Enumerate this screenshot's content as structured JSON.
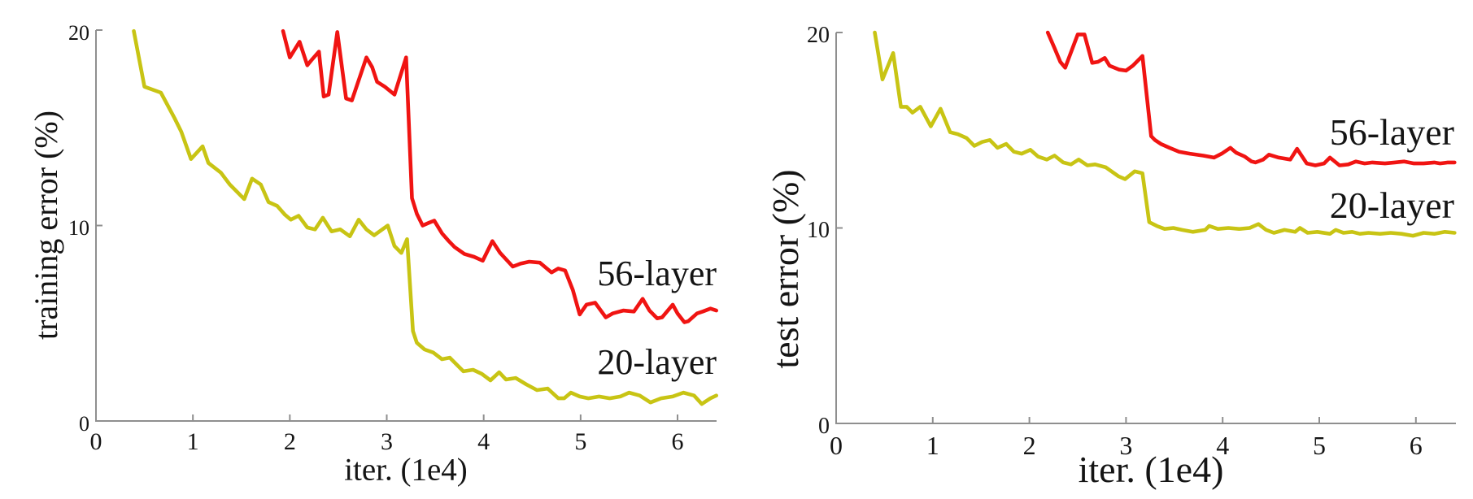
{
  "figure": {
    "background": "#ffffff",
    "axis_color": "#8f8f8f",
    "text_color": "#141414",
    "series_colors": {
      "layer56": "#f01412",
      "layer20": "#c8c414"
    }
  },
  "chart_data": [
    {
      "type": "line",
      "panel": "left",
      "title": "",
      "xlabel": "iter. (1e4)",
      "ylabel": "training error (%)",
      "xlim": [
        0,
        6.4
      ],
      "ylim": [
        0,
        20
      ],
      "x_ticks": [
        0,
        1,
        2,
        3,
        4,
        5,
        6
      ],
      "y_ticks": [
        0,
        10,
        20
      ],
      "grid": false,
      "legend_position": "inline-annotations",
      "annotations": [
        {
          "text": "56-layer",
          "series": "56-layer"
        },
        {
          "text": "20-layer",
          "series": "20-layer"
        }
      ],
      "series": [
        {
          "name": "20-layer",
          "color": "#c8c414",
          "points": [
            [
              0.39,
              19.95
            ],
            [
              0.5,
              17.1
            ],
            [
              0.67,
              16.8
            ],
            [
              0.81,
              15.5
            ],
            [
              0.88,
              14.8
            ],
            [
              0.98,
              13.4
            ],
            [
              1.1,
              14.05
            ],
            [
              1.16,
              13.2
            ],
            [
              1.29,
              12.7
            ],
            [
              1.38,
              12.1
            ],
            [
              1.53,
              11.35
            ],
            [
              1.61,
              12.4
            ],
            [
              1.7,
              12.1
            ],
            [
              1.78,
              11.2
            ],
            [
              1.87,
              11.0
            ],
            [
              1.95,
              10.55
            ],
            [
              2.01,
              10.3
            ],
            [
              2.09,
              10.5
            ],
            [
              2.18,
              9.9
            ],
            [
              2.26,
              9.8
            ],
            [
              2.34,
              10.4
            ],
            [
              2.43,
              9.7
            ],
            [
              2.52,
              9.8
            ],
            [
              2.62,
              9.45
            ],
            [
              2.71,
              10.3
            ],
            [
              2.79,
              9.8
            ],
            [
              2.87,
              9.5
            ],
            [
              3.01,
              10.0
            ],
            [
              3.08,
              8.95
            ],
            [
              3.15,
              8.6
            ],
            [
              3.21,
              9.3
            ],
            [
              3.27,
              4.6
            ],
            [
              3.31,
              4.0
            ],
            [
              3.39,
              3.66
            ],
            [
              3.48,
              3.5
            ],
            [
              3.57,
              3.16
            ],
            [
              3.65,
              3.24
            ],
            [
              3.79,
              2.54
            ],
            [
              3.89,
              2.62
            ],
            [
              3.98,
              2.41
            ],
            [
              4.07,
              2.08
            ],
            [
              4.16,
              2.49
            ],
            [
              4.23,
              2.12
            ],
            [
              4.33,
              2.2
            ],
            [
              4.44,
              1.87
            ],
            [
              4.55,
              1.58
            ],
            [
              4.66,
              1.66
            ],
            [
              4.77,
              1.16
            ],
            [
              4.83,
              1.16
            ],
            [
              4.9,
              1.45
            ],
            [
              4.99,
              1.25
            ],
            [
              5.08,
              1.16
            ],
            [
              5.19,
              1.25
            ],
            [
              5.3,
              1.16
            ],
            [
              5.41,
              1.25
            ],
            [
              5.5,
              1.45
            ],
            [
              5.61,
              1.3
            ],
            [
              5.72,
              0.95
            ],
            [
              5.83,
              1.16
            ],
            [
              5.95,
              1.25
            ],
            [
              6.06,
              1.45
            ],
            [
              6.17,
              1.3
            ],
            [
              6.25,
              0.87
            ],
            [
              6.34,
              1.16
            ],
            [
              6.4,
              1.3
            ]
          ]
        },
        {
          "name": "56-layer",
          "color": "#f01412",
          "points": [
            [
              1.93,
              19.95
            ],
            [
              2.0,
              18.6
            ],
            [
              2.1,
              19.4
            ],
            [
              2.18,
              18.2
            ],
            [
              2.23,
              18.5
            ],
            [
              2.3,
              18.9
            ],
            [
              2.35,
              16.6
            ],
            [
              2.4,
              16.7
            ],
            [
              2.49,
              19.9
            ],
            [
              2.58,
              16.5
            ],
            [
              2.64,
              16.4
            ],
            [
              2.79,
              18.6
            ],
            [
              2.85,
              18.1
            ],
            [
              2.9,
              17.35
            ],
            [
              2.98,
              17.1
            ],
            [
              3.08,
              16.7
            ],
            [
              3.2,
              18.6
            ],
            [
              3.26,
              11.4
            ],
            [
              3.31,
              10.6
            ],
            [
              3.37,
              10.0
            ],
            [
              3.44,
              10.15
            ],
            [
              3.49,
              10.25
            ],
            [
              3.57,
              9.6
            ],
            [
              3.64,
              9.2
            ],
            [
              3.7,
              8.9
            ],
            [
              3.8,
              8.55
            ],
            [
              3.9,
              8.4
            ],
            [
              3.99,
              8.2
            ],
            [
              4.09,
              9.2
            ],
            [
              4.17,
              8.6
            ],
            [
              4.3,
              7.9
            ],
            [
              4.38,
              8.05
            ],
            [
              4.47,
              8.15
            ],
            [
              4.58,
              8.1
            ],
            [
              4.7,
              7.6
            ],
            [
              4.77,
              7.8
            ],
            [
              4.84,
              7.7
            ],
            [
              4.92,
              6.7
            ],
            [
              4.99,
              5.45
            ],
            [
              5.06,
              5.95
            ],
            [
              5.15,
              6.05
            ],
            [
              5.26,
              5.3
            ],
            [
              5.33,
              5.5
            ],
            [
              5.44,
              5.65
            ],
            [
              5.55,
              5.6
            ],
            [
              5.64,
              6.25
            ],
            [
              5.71,
              5.65
            ],
            [
              5.79,
              5.25
            ],
            [
              5.84,
              5.3
            ],
            [
              5.95,
              5.95
            ],
            [
              6.0,
              5.5
            ],
            [
              6.07,
              5.05
            ],
            [
              6.11,
              5.1
            ],
            [
              6.2,
              5.5
            ],
            [
              6.26,
              5.6
            ],
            [
              6.34,
              5.75
            ],
            [
              6.4,
              5.65
            ]
          ]
        }
      ]
    },
    {
      "type": "line",
      "panel": "right",
      "title": "",
      "xlabel": "iter. (1e4)",
      "ylabel": "test error (%)",
      "xlim": [
        0,
        6.4
      ],
      "ylim": [
        0,
        20
      ],
      "x_ticks": [
        0,
        1,
        2,
        3,
        4,
        5,
        6
      ],
      "y_ticks": [
        0,
        10,
        20
      ],
      "grid": false,
      "legend_position": "inline-annotations",
      "annotations": [
        {
          "text": "56-layer",
          "series": "56-layer"
        },
        {
          "text": "20-layer",
          "series": "20-layer"
        }
      ],
      "series": [
        {
          "name": "20-layer",
          "color": "#c8c414",
          "points": [
            [
              0.4,
              20.0
            ],
            [
              0.48,
              17.6
            ],
            [
              0.59,
              18.95
            ],
            [
              0.67,
              16.2
            ],
            [
              0.73,
              16.2
            ],
            [
              0.79,
              15.9
            ],
            [
              0.87,
              16.2
            ],
            [
              0.98,
              15.2
            ],
            [
              1.08,
              16.1
            ],
            [
              1.18,
              14.9
            ],
            [
              1.26,
              14.8
            ],
            [
              1.35,
              14.6
            ],
            [
              1.43,
              14.2
            ],
            [
              1.51,
              14.4
            ],
            [
              1.59,
              14.5
            ],
            [
              1.67,
              14.1
            ],
            [
              1.76,
              14.3
            ],
            [
              1.84,
              13.9
            ],
            [
              1.92,
              13.8
            ],
            [
              2.01,
              14.0
            ],
            [
              2.09,
              13.65
            ],
            [
              2.18,
              13.5
            ],
            [
              2.26,
              13.7
            ],
            [
              2.35,
              13.35
            ],
            [
              2.43,
              13.25
            ],
            [
              2.51,
              13.5
            ],
            [
              2.6,
              13.2
            ],
            [
              2.68,
              13.25
            ],
            [
              2.79,
              13.1
            ],
            [
              2.92,
              12.65
            ],
            [
              2.99,
              12.5
            ],
            [
              3.09,
              12.9
            ],
            [
              3.17,
              12.8
            ],
            [
              3.24,
              10.3
            ],
            [
              3.32,
              10.1
            ],
            [
              3.4,
              9.95
            ],
            [
              3.49,
              10.0
            ],
            [
              3.58,
              9.9
            ],
            [
              3.69,
              9.8
            ],
            [
              3.82,
              9.9
            ],
            [
              3.86,
              10.1
            ],
            [
              3.95,
              9.95
            ],
            [
              4.06,
              10.0
            ],
            [
              4.17,
              9.95
            ],
            [
              4.28,
              10.0
            ],
            [
              4.37,
              10.2
            ],
            [
              4.45,
              9.9
            ],
            [
              4.53,
              9.75
            ],
            [
              4.64,
              9.9
            ],
            [
              4.75,
              9.8
            ],
            [
              4.8,
              10.0
            ],
            [
              4.88,
              9.75
            ],
            [
              4.98,
              9.8
            ],
            [
              5.11,
              9.7
            ],
            [
              5.17,
              9.9
            ],
            [
              5.25,
              9.75
            ],
            [
              5.34,
              9.8
            ],
            [
              5.42,
              9.7
            ],
            [
              5.51,
              9.75
            ],
            [
              5.63,
              9.7
            ],
            [
              5.74,
              9.75
            ],
            [
              5.85,
              9.7
            ],
            [
              5.97,
              9.6
            ],
            [
              6.08,
              9.75
            ],
            [
              6.19,
              9.7
            ],
            [
              6.3,
              9.8
            ],
            [
              6.4,
              9.75
            ]
          ]
        },
        {
          "name": "56-layer",
          "color": "#f01412",
          "points": [
            [
              2.19,
              20.0
            ],
            [
              2.26,
              19.2
            ],
            [
              2.32,
              18.5
            ],
            [
              2.37,
              18.2
            ],
            [
              2.5,
              19.9
            ],
            [
              2.57,
              19.9
            ],
            [
              2.65,
              18.45
            ],
            [
              2.71,
              18.5
            ],
            [
              2.78,
              18.7
            ],
            [
              2.83,
              18.3
            ],
            [
              2.93,
              18.1
            ],
            [
              3.0,
              18.05
            ],
            [
              3.07,
              18.3
            ],
            [
              3.17,
              18.8
            ],
            [
              3.26,
              14.7
            ],
            [
              3.3,
              14.5
            ],
            [
              3.36,
              14.3
            ],
            [
              3.45,
              14.1
            ],
            [
              3.55,
              13.9
            ],
            [
              3.66,
              13.8
            ],
            [
              3.8,
              13.7
            ],
            [
              3.91,
              13.6
            ],
            [
              3.99,
              13.8
            ],
            [
              4.08,
              14.1
            ],
            [
              4.14,
              13.85
            ],
            [
              4.23,
              13.65
            ],
            [
              4.3,
              13.4
            ],
            [
              4.34,
              13.35
            ],
            [
              4.42,
              13.5
            ],
            [
              4.48,
              13.75
            ],
            [
              4.58,
              13.6
            ],
            [
              4.7,
              13.5
            ],
            [
              4.77,
              14.05
            ],
            [
              4.87,
              13.3
            ],
            [
              4.96,
              13.2
            ],
            [
              5.05,
              13.3
            ],
            [
              5.11,
              13.6
            ],
            [
              5.21,
              13.2
            ],
            [
              5.3,
              13.25
            ],
            [
              5.38,
              13.4
            ],
            [
              5.47,
              13.3
            ],
            [
              5.55,
              13.35
            ],
            [
              5.68,
              13.3
            ],
            [
              5.78,
              13.35
            ],
            [
              5.88,
              13.4
            ],
            [
              5.98,
              13.3
            ],
            [
              6.08,
              13.3
            ],
            [
              6.19,
              13.35
            ],
            [
              6.25,
              13.3
            ],
            [
              6.33,
              13.35
            ],
            [
              6.4,
              13.35
            ]
          ]
        }
      ]
    }
  ]
}
